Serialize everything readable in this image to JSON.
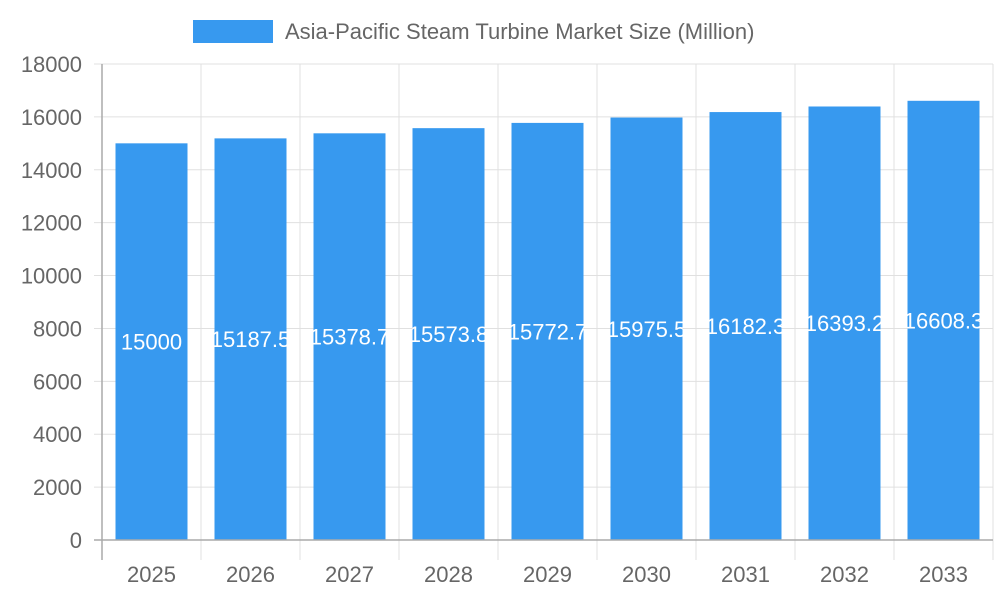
{
  "chart_data": {
    "type": "bar",
    "categories": [
      "2025",
      "2026",
      "2027",
      "2028",
      "2029",
      "2030",
      "2031",
      "2032",
      "2033"
    ],
    "series": [
      {
        "name": "Asia-Pacific Steam Turbine Market Size (Million)",
        "values": [
          15000,
          15187.5,
          15378.7,
          15573.8,
          15772.7,
          15975.5,
          16182.3,
          16393.2,
          16608.3
        ],
        "color": "#3799ef"
      }
    ],
    "data_labels": [
      "15000",
      "15187.5",
      "15378.7",
      "15573.8",
      "15772.7",
      "15975.5",
      "16182.3",
      "16393.2",
      "16608.3"
    ],
    "ylim": [
      0,
      18000
    ],
    "yticks": [
      "0",
      "2000",
      "4000",
      "6000",
      "8000",
      "10000",
      "12000",
      "14000",
      "16000",
      "18000"
    ],
    "grid": true,
    "legend_position": "top",
    "xlabel": "",
    "ylabel": ""
  }
}
